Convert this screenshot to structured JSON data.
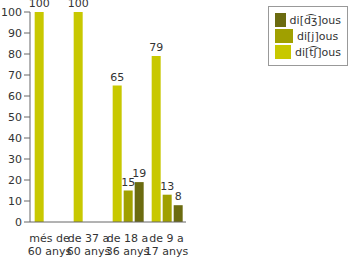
{
  "chart_data": {
    "type": "bar",
    "categories": [
      "més de 60 anys",
      "de 37 a 60 anys",
      "de 18 a 36 anys",
      "de 9 a 17 anys"
    ],
    "series": [
      {
        "name": "di[t͡ʃ]ous",
        "color": "#c8c800",
        "values": [
          100,
          100,
          65,
          79
        ]
      },
      {
        "name": "di[j]ous",
        "color": "#a0a000",
        "values": [
          0,
          0,
          15,
          13
        ]
      },
      {
        "name": "di[d͡ʒ]ous",
        "color": "#6b6b10",
        "values": [
          0,
          0,
          19,
          8
        ]
      }
    ],
    "ylim": [
      0,
      100
    ],
    "yticks": [
      0,
      10,
      20,
      30,
      40,
      50,
      60,
      70,
      80,
      90,
      100
    ],
    "grid": false,
    "legend": "upper right",
    "data_labels": true
  }
}
